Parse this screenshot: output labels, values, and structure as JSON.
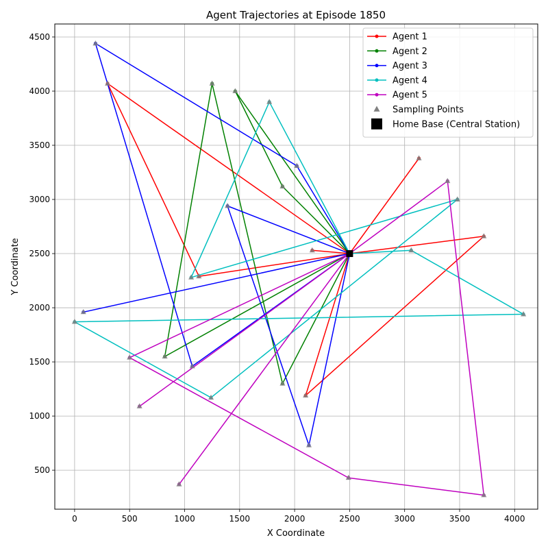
{
  "chart_data": {
    "type": "line",
    "title": "Agent Trajectories at Episode 1850",
    "xlabel": "X Coordinate",
    "ylabel": "Y Coordinate",
    "xlim": [
      -180,
      4210
    ],
    "ylim": [
      140,
      4620
    ],
    "xticks": [
      0,
      500,
      1000,
      1500,
      2000,
      2500,
      3000,
      3500,
      4000
    ],
    "yticks": [
      500,
      1000,
      1500,
      2000,
      2500,
      3000,
      3500,
      4000,
      4500
    ],
    "xtick_labels": [
      "0",
      "500",
      "1000",
      "1500",
      "2000",
      "2500",
      "3000",
      "3500",
      "4000"
    ],
    "ytick_labels": [
      "500",
      "1000",
      "1500",
      "2000",
      "2500",
      "3000",
      "3500",
      "4000",
      "4500"
    ],
    "grid": true,
    "legend_position": "top-right",
    "home_base": {
      "name": "Home Base (Central Station)",
      "x": 2500,
      "y": 2500,
      "color": "#000000"
    },
    "sampling_points": {
      "name": "Sampling Points",
      "color": "#808080"
    },
    "series": [
      {
        "name": "Agent 1",
        "color": "#ff0000",
        "points": [
          [
            2500,
            2500
          ],
          [
            1130,
            2290
          ],
          [
            300,
            4070
          ],
          [
            2500,
            2500
          ],
          [
            3130,
            3380
          ],
          [
            2500,
            2500
          ],
          [
            2160,
            2530
          ],
          [
            2500,
            2500
          ],
          [
            3720,
            2660
          ],
          [
            2100,
            1190
          ],
          [
            2500,
            2500
          ]
        ]
      },
      {
        "name": "Agent 2",
        "color": "#008000",
        "points": [
          [
            2500,
            2500
          ],
          [
            1890,
            1300
          ],
          [
            1250,
            4070
          ],
          [
            820,
            1550
          ],
          [
            2500,
            2500
          ],
          [
            1890,
            3120
          ],
          [
            1460,
            4000
          ],
          [
            2500,
            2500
          ]
        ]
      },
      {
        "name": "Agent 3",
        "color": "#0000ff",
        "points": [
          [
            2500,
            2500
          ],
          [
            80,
            1960
          ],
          [
            2500,
            2500
          ],
          [
            1390,
            2940
          ],
          [
            2130,
            730
          ],
          [
            2500,
            2500
          ],
          [
            2020,
            3310
          ],
          [
            190,
            4440
          ],
          [
            1070,
            1460
          ],
          [
            2500,
            2500
          ]
        ]
      },
      {
        "name": "Agent 4",
        "color": "#00bfbf",
        "points": [
          [
            2500,
            2500
          ],
          [
            1770,
            3900
          ],
          [
            1060,
            2280
          ],
          [
            3480,
            3000
          ],
          [
            1240,
            1170
          ],
          [
            0,
            1870
          ],
          [
            4080,
            1940
          ],
          [
            3060,
            2530
          ],
          [
            2500,
            2500
          ]
        ]
      },
      {
        "name": "Agent 5",
        "color": "#bf00bf",
        "points": [
          [
            2500,
            2500
          ],
          [
            950,
            370
          ],
          [
            2500,
            2500
          ],
          [
            3390,
            3170
          ],
          [
            3720,
            270
          ],
          [
            2490,
            430
          ],
          [
            500,
            1540
          ],
          [
            2500,
            2500
          ],
          [
            590,
            1090
          ],
          [
            2500,
            2500
          ]
        ]
      }
    ]
  }
}
